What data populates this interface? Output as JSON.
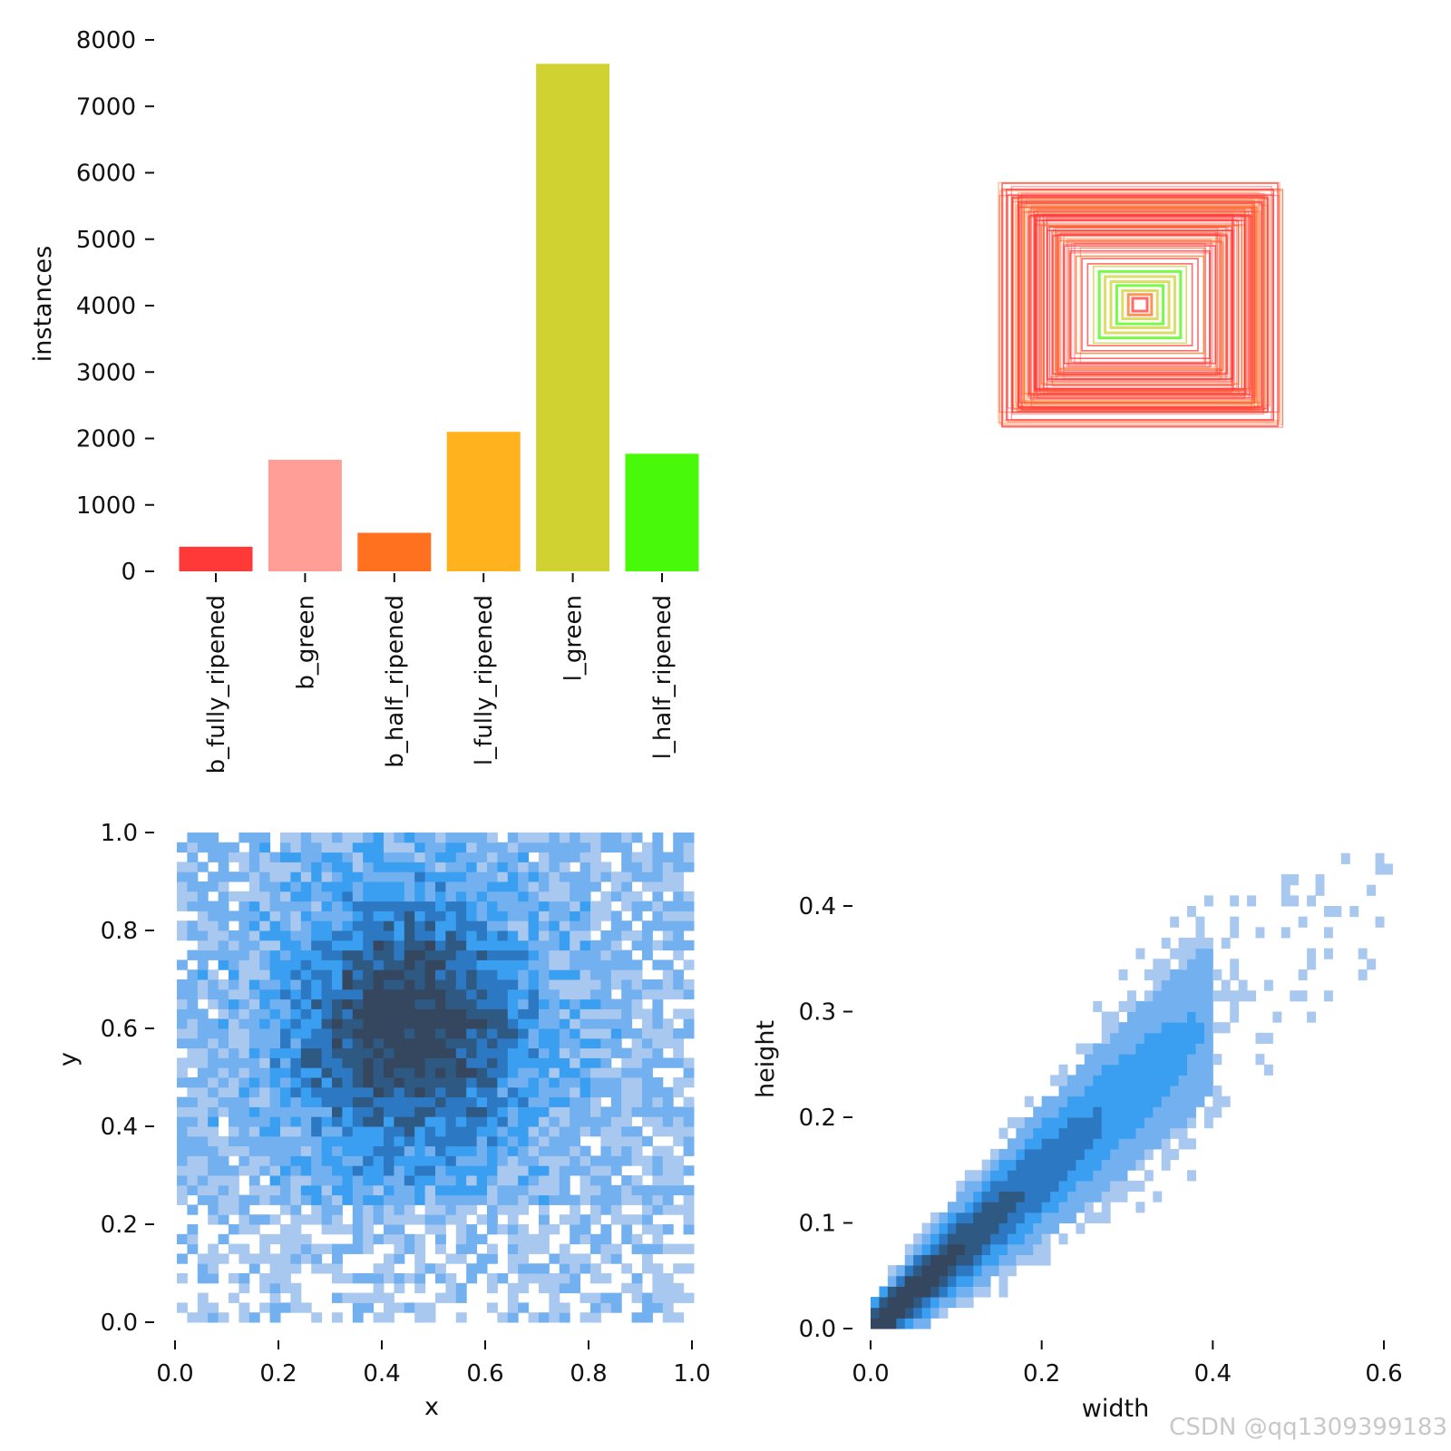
{
  "chart_data": [
    {
      "type": "bar",
      "name": "class-instances",
      "ylabel": "instances",
      "xlabel": "",
      "ylim": [
        0,
        8000
      ],
      "yticks": [
        0,
        1000,
        2000,
        3000,
        4000,
        5000,
        6000,
        7000,
        8000
      ],
      "categories": [
        "b_fully_ripened",
        "b_green",
        "b_half_ripened",
        "l_fully_ripened",
        "l_green",
        "l_half_ripened"
      ],
      "values": [
        370,
        1680,
        580,
        2100,
        7640,
        1770
      ],
      "colors": [
        "#ff3838",
        "#ff9d97",
        "#ff701f",
        "#ffb21d",
        "#cfd231",
        "#48f90a"
      ]
    },
    {
      "type": "boxes",
      "name": "box-overlay",
      "description_colors": [
        "#ff3838",
        "#ff701f",
        "#cfd231",
        "#48f90a"
      ],
      "boxes": [
        {
          "w": 0.95,
          "h": 0.95,
          "c": "#ff3838"
        },
        {
          "w": 0.92,
          "h": 0.9,
          "c": "#ff3838"
        },
        {
          "w": 0.88,
          "h": 0.84,
          "c": "#ff3838"
        },
        {
          "w": 0.84,
          "h": 0.8,
          "c": "#ff3838"
        },
        {
          "w": 0.8,
          "h": 0.76,
          "c": "#ff701f"
        },
        {
          "w": 0.76,
          "h": 0.7,
          "c": "#ff3838"
        },
        {
          "w": 0.72,
          "h": 0.66,
          "c": "#ff3838"
        },
        {
          "w": 0.68,
          "h": 0.62,
          "c": "#ff701f"
        },
        {
          "w": 0.64,
          "h": 0.58,
          "c": "#ff3838"
        },
        {
          "w": 0.6,
          "h": 0.54,
          "c": "#ff3838"
        },
        {
          "w": 0.56,
          "h": 0.5,
          "c": "#ff701f"
        },
        {
          "w": 0.52,
          "h": 0.46,
          "c": "#ff3838"
        },
        {
          "w": 0.48,
          "h": 0.42,
          "c": "#ff3838"
        },
        {
          "w": 0.44,
          "h": 0.38,
          "c": "#ff701f"
        },
        {
          "w": 0.4,
          "h": 0.36,
          "c": "#ff3838"
        },
        {
          "w": 0.36,
          "h": 0.32,
          "c": "#ff3838"
        },
        {
          "w": 0.32,
          "h": 0.3,
          "c": "#cfd231"
        },
        {
          "w": 0.28,
          "h": 0.26,
          "c": "#48f90a"
        },
        {
          "w": 0.24,
          "h": 0.22,
          "c": "#cfd231"
        },
        {
          "w": 0.2,
          "h": 0.18,
          "c": "#cfd231"
        },
        {
          "w": 0.16,
          "h": 0.15,
          "c": "#48f90a"
        },
        {
          "w": 0.12,
          "h": 0.11,
          "c": "#cfd231"
        },
        {
          "w": 0.08,
          "h": 0.08,
          "c": "#ff701f"
        },
        {
          "w": 0.05,
          "h": 0.05,
          "c": "#ff3838"
        }
      ]
    },
    {
      "type": "heatmap",
      "name": "xy-distribution",
      "xlabel": "x",
      "ylabel": "y",
      "xlim": [
        0,
        1
      ],
      "ylim": [
        0,
        1
      ],
      "xticks": [
        0.0,
        0.2,
        0.4,
        0.6,
        0.8,
        1.0
      ],
      "yticks": [
        0.0,
        0.2,
        0.4,
        0.6,
        0.8,
        1.0
      ],
      "tick_labels_x": [
        "0.0",
        "0.2",
        "0.4",
        "0.6",
        "0.8",
        "1.0"
      ],
      "tick_labels_y": [
        "0.0",
        "0.2",
        "0.4",
        "0.6",
        "0.8",
        "1.0"
      ],
      "density_center": [
        0.45,
        0.6
      ],
      "palette": [
        "#a9c8f0",
        "#72b0ef",
        "#3a9ff0",
        "#2d78c2",
        "#2e5982",
        "#35465f"
      ]
    },
    {
      "type": "heatmap",
      "name": "width-height-distribution",
      "xlabel": "width",
      "ylabel": "height",
      "xlim": [
        0,
        0.62
      ],
      "ylim": [
        0,
        0.45
      ],
      "xticks": [
        0.0,
        0.2,
        0.4,
        0.6
      ],
      "yticks": [
        0.0,
        0.1,
        0.2,
        0.3,
        0.4
      ],
      "tick_labels_x": [
        "0.0",
        "0.2",
        "0.4",
        "0.6"
      ],
      "tick_labels_y": [
        "0.0",
        "0.1",
        "0.2",
        "0.3",
        "0.4"
      ],
      "relation": "height ≈ 0.72 × width",
      "palette": [
        "#a9c8f0",
        "#72b0ef",
        "#3a9ff0",
        "#2d78c2",
        "#2e5982",
        "#35465f"
      ]
    }
  ],
  "watermark": "CSDN @qq1309399183"
}
